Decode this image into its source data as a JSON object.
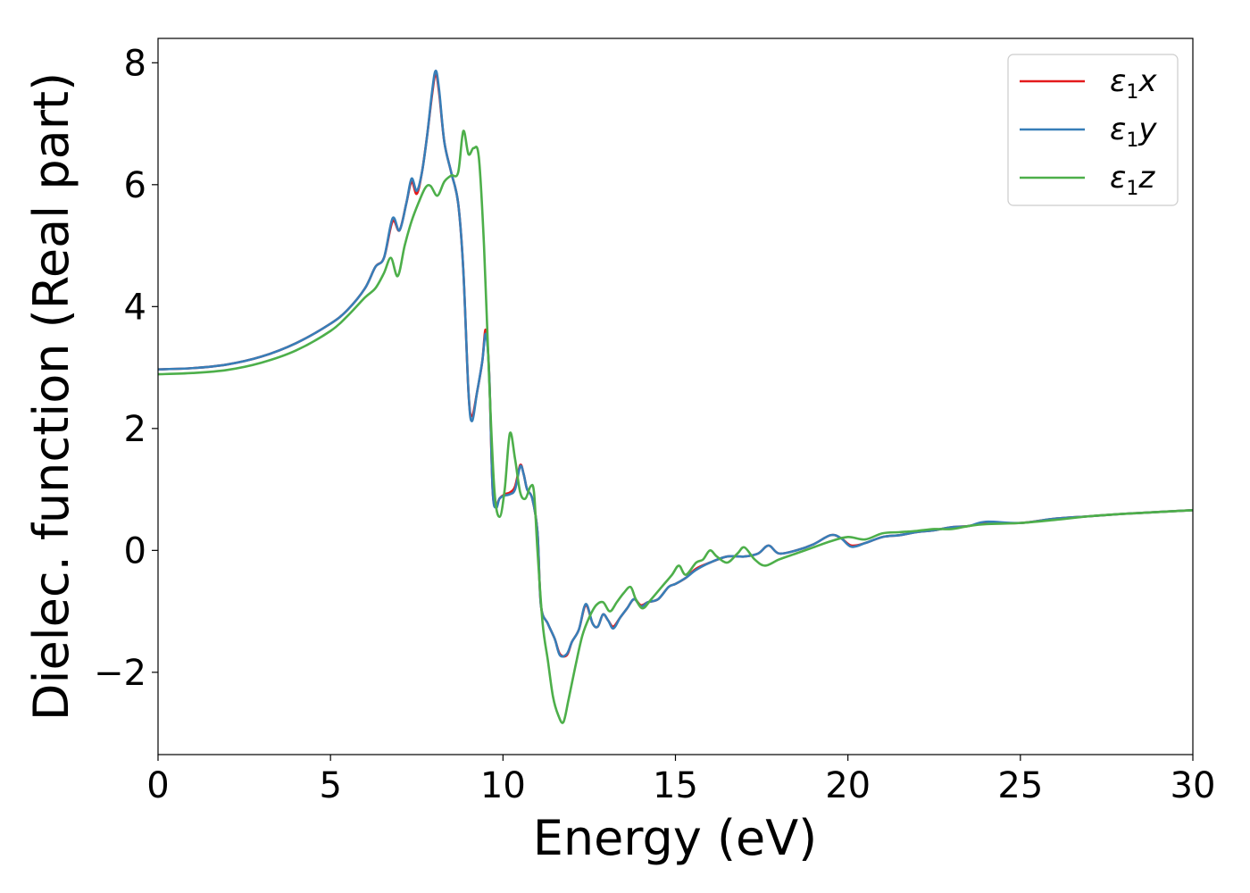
{
  "chart_data": {
    "type": "line",
    "title": "",
    "xlabel": "Energy (eV)",
    "ylabel": "Dielec. function (Real part)",
    "xlim": [
      0,
      30
    ],
    "ylim": [
      -3.35,
      8.4
    ],
    "xticks": [
      0,
      5,
      10,
      15,
      20,
      25,
      30
    ],
    "xtick_labels": [
      "0",
      "5",
      "10",
      "15",
      "20",
      "25",
      "30"
    ],
    "yticks": [
      -2,
      0,
      2,
      4,
      6,
      8
    ],
    "ytick_labels": [
      "−2",
      "0",
      "2",
      "4",
      "6",
      "8"
    ],
    "grid": false,
    "legend": "top-right",
    "series": [
      {
        "name": "ε1x",
        "symbol": "ε",
        "subscript": "1",
        "suffix": "x",
        "color": "#e41a1c",
        "points": [
          [
            0,
            2.97
          ],
          [
            1,
            2.99
          ],
          [
            2,
            3.05
          ],
          [
            3,
            3.18
          ],
          [
            4,
            3.4
          ],
          [
            5,
            3.72
          ],
          [
            5.5,
            3.95
          ],
          [
            6,
            4.3
          ],
          [
            6.3,
            4.65
          ],
          [
            6.55,
            4.8
          ],
          [
            6.8,
            5.4
          ],
          [
            7.0,
            5.25
          ],
          [
            7.2,
            5.7
          ],
          [
            7.35,
            6.05
          ],
          [
            7.5,
            5.85
          ],
          [
            7.65,
            6.2
          ],
          [
            7.8,
            6.8
          ],
          [
            7.95,
            7.5
          ],
          [
            8.05,
            7.82
          ],
          [
            8.15,
            7.5
          ],
          [
            8.3,
            6.7
          ],
          [
            8.5,
            6.2
          ],
          [
            8.7,
            5.7
          ],
          [
            8.85,
            4.6
          ],
          [
            9.0,
            2.6
          ],
          [
            9.1,
            2.2
          ],
          [
            9.25,
            2.6
          ],
          [
            9.4,
            3.1
          ],
          [
            9.5,
            3.62
          ],
          [
            9.6,
            2.9
          ],
          [
            9.7,
            1.0
          ],
          [
            9.8,
            0.75
          ],
          [
            9.9,
            0.85
          ],
          [
            10.05,
            0.92
          ],
          [
            10.2,
            0.95
          ],
          [
            10.35,
            1.05
          ],
          [
            10.5,
            1.4
          ],
          [
            10.6,
            1.25
          ],
          [
            10.7,
            1.0
          ],
          [
            10.85,
            0.85
          ],
          [
            11.0,
            0.3
          ],
          [
            11.1,
            -0.9
          ],
          [
            11.3,
            -1.2
          ],
          [
            11.5,
            -1.45
          ],
          [
            11.65,
            -1.7
          ],
          [
            11.85,
            -1.72
          ],
          [
            12.0,
            -1.5
          ],
          [
            12.2,
            -1.3
          ],
          [
            12.4,
            -0.9
          ],
          [
            12.6,
            -1.2
          ],
          [
            12.75,
            -1.25
          ],
          [
            12.9,
            -1.05
          ],
          [
            13.05,
            -1.15
          ],
          [
            13.2,
            -1.25
          ],
          [
            13.4,
            -1.1
          ],
          [
            13.6,
            -0.95
          ],
          [
            13.8,
            -0.8
          ],
          [
            14.0,
            -0.9
          ],
          [
            14.2,
            -0.85
          ],
          [
            14.5,
            -0.8
          ],
          [
            14.8,
            -0.6
          ],
          [
            15.0,
            -0.55
          ],
          [
            15.3,
            -0.45
          ],
          [
            15.6,
            -0.3
          ],
          [
            16.0,
            -0.2
          ],
          [
            16.5,
            -0.1
          ],
          [
            17.0,
            -0.1
          ],
          [
            17.4,
            -0.05
          ],
          [
            17.7,
            0.08
          ],
          [
            18.0,
            -0.05
          ],
          [
            18.5,
            0.0
          ],
          [
            19.0,
            0.1
          ],
          [
            19.5,
            0.25
          ],
          [
            19.8,
            0.2
          ],
          [
            20.1,
            0.08
          ],
          [
            20.5,
            0.12
          ],
          [
            21.0,
            0.22
          ],
          [
            21.5,
            0.25
          ],
          [
            22.0,
            0.3
          ],
          [
            22.5,
            0.33
          ],
          [
            23.0,
            0.38
          ],
          [
            23.5,
            0.4
          ],
          [
            24.0,
            0.45
          ],
          [
            25.0,
            0.45
          ],
          [
            26.0,
            0.52
          ],
          [
            27.0,
            0.56
          ],
          [
            28.0,
            0.6
          ],
          [
            29.0,
            0.63
          ],
          [
            30.0,
            0.66
          ]
        ]
      },
      {
        "name": "ε1y",
        "symbol": "ε",
        "subscript": "1",
        "suffix": "y",
        "color": "#377eb8",
        "points": [
          [
            0,
            2.97
          ],
          [
            1,
            2.99
          ],
          [
            2,
            3.05
          ],
          [
            3,
            3.18
          ],
          [
            4,
            3.4
          ],
          [
            5,
            3.72
          ],
          [
            5.5,
            3.95
          ],
          [
            6,
            4.3
          ],
          [
            6.3,
            4.65
          ],
          [
            6.55,
            4.8
          ],
          [
            6.8,
            5.45
          ],
          [
            7.0,
            5.25
          ],
          [
            7.2,
            5.7
          ],
          [
            7.35,
            6.1
          ],
          [
            7.5,
            5.9
          ],
          [
            7.65,
            6.2
          ],
          [
            7.8,
            6.8
          ],
          [
            7.95,
            7.55
          ],
          [
            8.05,
            7.87
          ],
          [
            8.15,
            7.55
          ],
          [
            8.3,
            6.7
          ],
          [
            8.5,
            6.2
          ],
          [
            8.7,
            5.7
          ],
          [
            8.85,
            4.6
          ],
          [
            9.0,
            2.6
          ],
          [
            9.1,
            2.12
          ],
          [
            9.25,
            2.6
          ],
          [
            9.4,
            3.1
          ],
          [
            9.5,
            3.55
          ],
          [
            9.6,
            2.9
          ],
          [
            9.7,
            1.0
          ],
          [
            9.8,
            0.7
          ],
          [
            9.9,
            0.85
          ],
          [
            10.05,
            0.9
          ],
          [
            10.2,
            0.92
          ],
          [
            10.35,
            1.0
          ],
          [
            10.5,
            1.38
          ],
          [
            10.6,
            1.25
          ],
          [
            10.7,
            1.0
          ],
          [
            10.85,
            0.85
          ],
          [
            11.0,
            0.3
          ],
          [
            11.1,
            -0.9
          ],
          [
            11.3,
            -1.2
          ],
          [
            11.5,
            -1.45
          ],
          [
            11.65,
            -1.72
          ],
          [
            11.85,
            -1.7
          ],
          [
            12.0,
            -1.5
          ],
          [
            12.2,
            -1.3
          ],
          [
            12.4,
            -0.88
          ],
          [
            12.6,
            -1.2
          ],
          [
            12.75,
            -1.25
          ],
          [
            12.9,
            -1.05
          ],
          [
            13.05,
            -1.15
          ],
          [
            13.2,
            -1.28
          ],
          [
            13.4,
            -1.1
          ],
          [
            13.6,
            -0.95
          ],
          [
            13.8,
            -0.8
          ],
          [
            14.0,
            -0.92
          ],
          [
            14.2,
            -0.85
          ],
          [
            14.5,
            -0.8
          ],
          [
            14.8,
            -0.6
          ],
          [
            15.0,
            -0.55
          ],
          [
            15.3,
            -0.45
          ],
          [
            15.6,
            -0.32
          ],
          [
            16.0,
            -0.2
          ],
          [
            16.5,
            -0.1
          ],
          [
            17.0,
            -0.1
          ],
          [
            17.4,
            -0.05
          ],
          [
            17.7,
            0.08
          ],
          [
            18.0,
            -0.05
          ],
          [
            18.5,
            0.0
          ],
          [
            19.0,
            0.1
          ],
          [
            19.5,
            0.25
          ],
          [
            19.8,
            0.2
          ],
          [
            20.1,
            0.06
          ],
          [
            20.5,
            0.12
          ],
          [
            21.0,
            0.22
          ],
          [
            21.5,
            0.25
          ],
          [
            22.0,
            0.3
          ],
          [
            22.5,
            0.33
          ],
          [
            23.0,
            0.38
          ],
          [
            23.5,
            0.4
          ],
          [
            24.0,
            0.47
          ],
          [
            25.0,
            0.45
          ],
          [
            26.0,
            0.52
          ],
          [
            27.0,
            0.56
          ],
          [
            28.0,
            0.6
          ],
          [
            29.0,
            0.63
          ],
          [
            30.0,
            0.66
          ]
        ]
      },
      {
        "name": "ε1z",
        "symbol": "ε",
        "subscript": "1",
        "suffix": "z",
        "color": "#4daf4a",
        "points": [
          [
            0,
            2.89
          ],
          [
            1,
            2.91
          ],
          [
            2,
            2.96
          ],
          [
            3,
            3.08
          ],
          [
            4,
            3.28
          ],
          [
            5,
            3.6
          ],
          [
            5.5,
            3.85
          ],
          [
            6,
            4.15
          ],
          [
            6.3,
            4.3
          ],
          [
            6.55,
            4.55
          ],
          [
            6.75,
            4.8
          ],
          [
            6.95,
            4.5
          ],
          [
            7.15,
            5.0
          ],
          [
            7.35,
            5.4
          ],
          [
            7.55,
            5.7
          ],
          [
            7.75,
            5.95
          ],
          [
            7.9,
            5.98
          ],
          [
            8.1,
            5.82
          ],
          [
            8.3,
            6.05
          ],
          [
            8.5,
            6.15
          ],
          [
            8.7,
            6.2
          ],
          [
            8.85,
            6.88
          ],
          [
            9.0,
            6.5
          ],
          [
            9.15,
            6.6
          ],
          [
            9.3,
            6.45
          ],
          [
            9.45,
            5.0
          ],
          [
            9.6,
            2.8
          ],
          [
            9.75,
            1.0
          ],
          [
            9.9,
            0.55
          ],
          [
            10.05,
            1.0
          ],
          [
            10.2,
            1.92
          ],
          [
            10.35,
            1.5
          ],
          [
            10.5,
            0.95
          ],
          [
            10.65,
            0.85
          ],
          [
            10.8,
            1.05
          ],
          [
            10.9,
            0.95
          ],
          [
            11.0,
            0.0
          ],
          [
            11.15,
            -1.2
          ],
          [
            11.3,
            -1.8
          ],
          [
            11.45,
            -2.4
          ],
          [
            11.6,
            -2.7
          ],
          [
            11.75,
            -2.82
          ],
          [
            11.9,
            -2.45
          ],
          [
            12.1,
            -1.9
          ],
          [
            12.3,
            -1.4
          ],
          [
            12.5,
            -1.1
          ],
          [
            12.7,
            -0.9
          ],
          [
            12.9,
            -0.85
          ],
          [
            13.1,
            -1.0
          ],
          [
            13.3,
            -0.85
          ],
          [
            13.5,
            -0.7
          ],
          [
            13.7,
            -0.6
          ],
          [
            13.85,
            -0.8
          ],
          [
            14.05,
            -0.95
          ],
          [
            14.3,
            -0.8
          ],
          [
            14.6,
            -0.6
          ],
          [
            14.9,
            -0.4
          ],
          [
            15.1,
            -0.25
          ],
          [
            15.3,
            -0.4
          ],
          [
            15.6,
            -0.2
          ],
          [
            15.8,
            -0.15
          ],
          [
            16.0,
            0.0
          ],
          [
            16.2,
            -0.1
          ],
          [
            16.5,
            -0.2
          ],
          [
            16.8,
            -0.05
          ],
          [
            17.0,
            0.05
          ],
          [
            17.3,
            -0.15
          ],
          [
            17.6,
            -0.25
          ],
          [
            18.0,
            -0.15
          ],
          [
            18.5,
            -0.05
          ],
          [
            19.0,
            0.05
          ],
          [
            19.5,
            0.15
          ],
          [
            20.0,
            0.22
          ],
          [
            20.5,
            0.18
          ],
          [
            21.0,
            0.28
          ],
          [
            21.5,
            0.3
          ],
          [
            22.0,
            0.32
          ],
          [
            22.5,
            0.35
          ],
          [
            23.0,
            0.35
          ],
          [
            23.5,
            0.4
          ],
          [
            24.0,
            0.43
          ],
          [
            25.0,
            0.45
          ],
          [
            26.0,
            0.5
          ],
          [
            27.0,
            0.56
          ],
          [
            28.0,
            0.6
          ],
          [
            29.0,
            0.63
          ],
          [
            30.0,
            0.66
          ]
        ]
      }
    ]
  }
}
